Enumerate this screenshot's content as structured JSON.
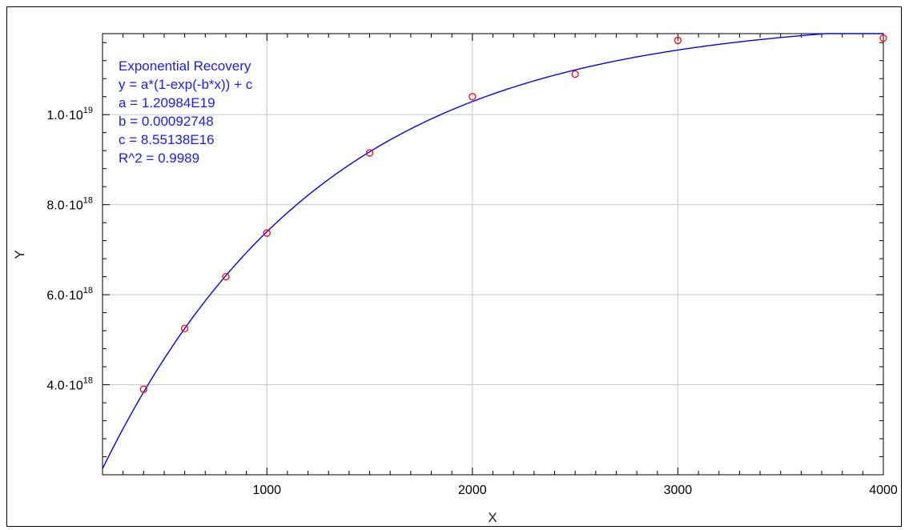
{
  "chart_data": {
    "type": "scatter",
    "title": "",
    "xlabel": "X",
    "ylabel": "Y",
    "xlim": [
      200,
      4000
    ],
    "ylim": [
      2e+18,
      1.18e+19
    ],
    "x_ticks": [
      1000,
      2000,
      3000,
      4000
    ],
    "x_tick_labels": [
      "1000",
      "2000",
      "3000",
      "4000"
    ],
    "y_ticks": [
      4e+18,
      6e+18,
      8e+18,
      1e+19
    ],
    "y_tick_labels": [
      {
        "base": "4.0·10",
        "exp": "18"
      },
      {
        "base": "6.0·10",
        "exp": "18"
      },
      {
        "base": "8.0·10",
        "exp": "18"
      },
      {
        "base": "1.0·10",
        "exp": "19"
      }
    ],
    "grid": true,
    "series": [
      {
        "type": "scatter",
        "color": "#ff0000",
        "marker": "open-circle",
        "x": [
          400,
          600,
          800,
          1000,
          1500,
          2000,
          2500,
          3000,
          4000
        ],
        "y": [
          3.9e+18,
          5.25e+18,
          6.4e+18,
          7.37e+18,
          9.15e+18,
          1.04e+19,
          1.09e+19,
          1.165e+19,
          1.17e+19
        ]
      },
      {
        "type": "line",
        "color": "#0000ff",
        "fit": {
          "a": 1.20984e+19,
          "b": 0.00092748,
          "c": 8.55138e+16
        },
        "x_range": [
          200,
          4000
        ]
      }
    ],
    "annotation": {
      "color": "#1a1aff",
      "lines": [
        "Exponential Recovery",
        "y = a*(1-exp(-b*x)) + c",
        "a = 1.20984E19",
        "b = 0.00092748",
        "c = 8.55138E16",
        "R^2 = 0.9989"
      ]
    }
  }
}
